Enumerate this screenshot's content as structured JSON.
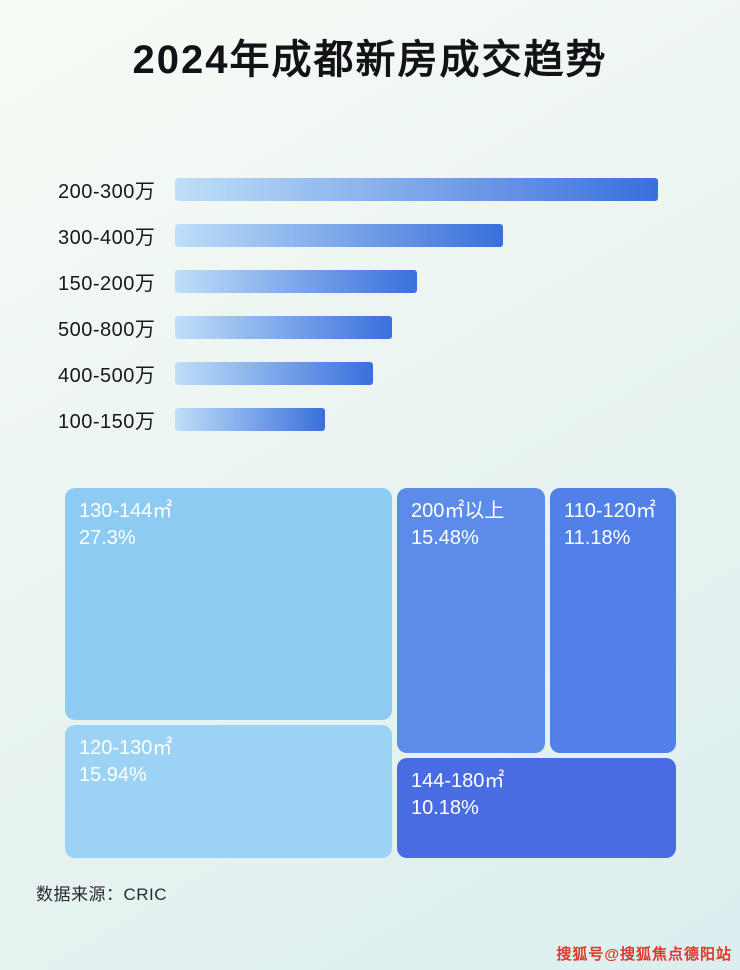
{
  "page": {
    "title": "2024年成都新房成交趋势",
    "source": "数据来源：CRIC",
    "watermark": "搜狐号@搜狐焦点德阳站"
  },
  "colors": {
    "bar_gradient_start": "#bfdff8",
    "bar_gradient_end": "#3a6fdc",
    "title_color": "#121217",
    "watermark_color": "#e0382b"
  },
  "chart_data": [
    {
      "type": "bar",
      "orientation": "horizontal",
      "title": "2024年成都新房成交趋势",
      "xlabel": "",
      "ylabel": "",
      "categories": [
        "200-300万",
        "300-400万",
        "150-200万",
        "500-800万",
        "400-500万",
        "100-150万"
      ],
      "values": [
        100,
        68,
        50,
        45,
        41,
        31
      ],
      "value_note": "relative bar lengths as % of longest bar; no numeric axis shown in image",
      "grid": false,
      "legend": false
    },
    {
      "type": "treemap",
      "title": "",
      "items": [
        {
          "label": "130-144㎡",
          "value": 27.3,
          "display": "27.3%",
          "color": "#8dcbf3"
        },
        {
          "label": "120-130㎡",
          "value": 15.94,
          "display": "15.94%",
          "color": "#9cd3f5"
        },
        {
          "label": "200㎡以上",
          "value": 15.48,
          "display": "15.48%",
          "color": "#5b8cea"
        },
        {
          "label": "110-120㎡",
          "value": 11.18,
          "display": "11.18%",
          "color": "#5080e8"
        },
        {
          "label": "144-180㎡",
          "value": 10.18,
          "display": "10.18%",
          "color": "#4a6ce2"
        }
      ]
    }
  ]
}
